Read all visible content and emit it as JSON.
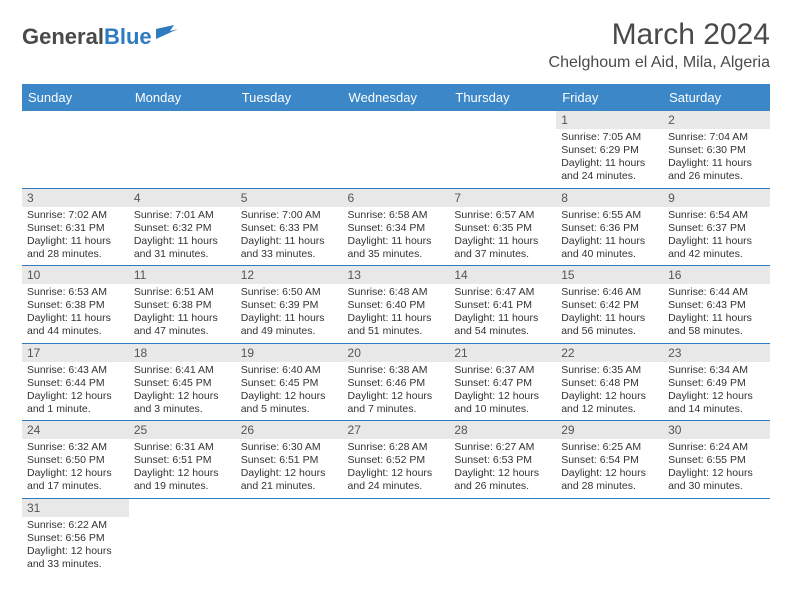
{
  "logo": {
    "text1": "General",
    "text2": "Blue"
  },
  "title": "March 2024",
  "location": "Chelghoum el Aid, Mila, Algeria",
  "colors": {
    "header_bg": "#3b87c8",
    "header_text": "#ffffff",
    "daynum_bg": "#e8e8e8",
    "border": "#2f7bbf",
    "logo_gray": "#4a4a4a",
    "logo_blue": "#2f7bbf"
  },
  "typography": {
    "title_fontsize": 30,
    "location_fontsize": 16,
    "dayheader_fontsize": 13,
    "daynum_fontsize": 12,
    "dayinfo_fontsize": 10.5
  },
  "weekdays": [
    "Sunday",
    "Monday",
    "Tuesday",
    "Wednesday",
    "Thursday",
    "Friday",
    "Saturday"
  ],
  "weeks": [
    [
      null,
      null,
      null,
      null,
      null,
      {
        "n": "1",
        "sr": "Sunrise: 7:05 AM",
        "ss": "Sunset: 6:29 PM",
        "dl": "Daylight: 11 hours and 24 minutes."
      },
      {
        "n": "2",
        "sr": "Sunrise: 7:04 AM",
        "ss": "Sunset: 6:30 PM",
        "dl": "Daylight: 11 hours and 26 minutes."
      }
    ],
    [
      {
        "n": "3",
        "sr": "Sunrise: 7:02 AM",
        "ss": "Sunset: 6:31 PM",
        "dl": "Daylight: 11 hours and 28 minutes."
      },
      {
        "n": "4",
        "sr": "Sunrise: 7:01 AM",
        "ss": "Sunset: 6:32 PM",
        "dl": "Daylight: 11 hours and 31 minutes."
      },
      {
        "n": "5",
        "sr": "Sunrise: 7:00 AM",
        "ss": "Sunset: 6:33 PM",
        "dl": "Daylight: 11 hours and 33 minutes."
      },
      {
        "n": "6",
        "sr": "Sunrise: 6:58 AM",
        "ss": "Sunset: 6:34 PM",
        "dl": "Daylight: 11 hours and 35 minutes."
      },
      {
        "n": "7",
        "sr": "Sunrise: 6:57 AM",
        "ss": "Sunset: 6:35 PM",
        "dl": "Daylight: 11 hours and 37 minutes."
      },
      {
        "n": "8",
        "sr": "Sunrise: 6:55 AM",
        "ss": "Sunset: 6:36 PM",
        "dl": "Daylight: 11 hours and 40 minutes."
      },
      {
        "n": "9",
        "sr": "Sunrise: 6:54 AM",
        "ss": "Sunset: 6:37 PM",
        "dl": "Daylight: 11 hours and 42 minutes."
      }
    ],
    [
      {
        "n": "10",
        "sr": "Sunrise: 6:53 AM",
        "ss": "Sunset: 6:38 PM",
        "dl": "Daylight: 11 hours and 44 minutes."
      },
      {
        "n": "11",
        "sr": "Sunrise: 6:51 AM",
        "ss": "Sunset: 6:38 PM",
        "dl": "Daylight: 11 hours and 47 minutes."
      },
      {
        "n": "12",
        "sr": "Sunrise: 6:50 AM",
        "ss": "Sunset: 6:39 PM",
        "dl": "Daylight: 11 hours and 49 minutes."
      },
      {
        "n": "13",
        "sr": "Sunrise: 6:48 AM",
        "ss": "Sunset: 6:40 PM",
        "dl": "Daylight: 11 hours and 51 minutes."
      },
      {
        "n": "14",
        "sr": "Sunrise: 6:47 AM",
        "ss": "Sunset: 6:41 PM",
        "dl": "Daylight: 11 hours and 54 minutes."
      },
      {
        "n": "15",
        "sr": "Sunrise: 6:46 AM",
        "ss": "Sunset: 6:42 PM",
        "dl": "Daylight: 11 hours and 56 minutes."
      },
      {
        "n": "16",
        "sr": "Sunrise: 6:44 AM",
        "ss": "Sunset: 6:43 PM",
        "dl": "Daylight: 11 hours and 58 minutes."
      }
    ],
    [
      {
        "n": "17",
        "sr": "Sunrise: 6:43 AM",
        "ss": "Sunset: 6:44 PM",
        "dl": "Daylight: 12 hours and 1 minute."
      },
      {
        "n": "18",
        "sr": "Sunrise: 6:41 AM",
        "ss": "Sunset: 6:45 PM",
        "dl": "Daylight: 12 hours and 3 minutes."
      },
      {
        "n": "19",
        "sr": "Sunrise: 6:40 AM",
        "ss": "Sunset: 6:45 PM",
        "dl": "Daylight: 12 hours and 5 minutes."
      },
      {
        "n": "20",
        "sr": "Sunrise: 6:38 AM",
        "ss": "Sunset: 6:46 PM",
        "dl": "Daylight: 12 hours and 7 minutes."
      },
      {
        "n": "21",
        "sr": "Sunrise: 6:37 AM",
        "ss": "Sunset: 6:47 PM",
        "dl": "Daylight: 12 hours and 10 minutes."
      },
      {
        "n": "22",
        "sr": "Sunrise: 6:35 AM",
        "ss": "Sunset: 6:48 PM",
        "dl": "Daylight: 12 hours and 12 minutes."
      },
      {
        "n": "23",
        "sr": "Sunrise: 6:34 AM",
        "ss": "Sunset: 6:49 PM",
        "dl": "Daylight: 12 hours and 14 minutes."
      }
    ],
    [
      {
        "n": "24",
        "sr": "Sunrise: 6:32 AM",
        "ss": "Sunset: 6:50 PM",
        "dl": "Daylight: 12 hours and 17 minutes."
      },
      {
        "n": "25",
        "sr": "Sunrise: 6:31 AM",
        "ss": "Sunset: 6:51 PM",
        "dl": "Daylight: 12 hours and 19 minutes."
      },
      {
        "n": "26",
        "sr": "Sunrise: 6:30 AM",
        "ss": "Sunset: 6:51 PM",
        "dl": "Daylight: 12 hours and 21 minutes."
      },
      {
        "n": "27",
        "sr": "Sunrise: 6:28 AM",
        "ss": "Sunset: 6:52 PM",
        "dl": "Daylight: 12 hours and 24 minutes."
      },
      {
        "n": "28",
        "sr": "Sunrise: 6:27 AM",
        "ss": "Sunset: 6:53 PM",
        "dl": "Daylight: 12 hours and 26 minutes."
      },
      {
        "n": "29",
        "sr": "Sunrise: 6:25 AM",
        "ss": "Sunset: 6:54 PM",
        "dl": "Daylight: 12 hours and 28 minutes."
      },
      {
        "n": "30",
        "sr": "Sunrise: 6:24 AM",
        "ss": "Sunset: 6:55 PM",
        "dl": "Daylight: 12 hours and 30 minutes."
      }
    ],
    [
      {
        "n": "31",
        "sr": "Sunrise: 6:22 AM",
        "ss": "Sunset: 6:56 PM",
        "dl": "Daylight: 12 hours and 33 minutes."
      },
      null,
      null,
      null,
      null,
      null,
      null
    ]
  ]
}
